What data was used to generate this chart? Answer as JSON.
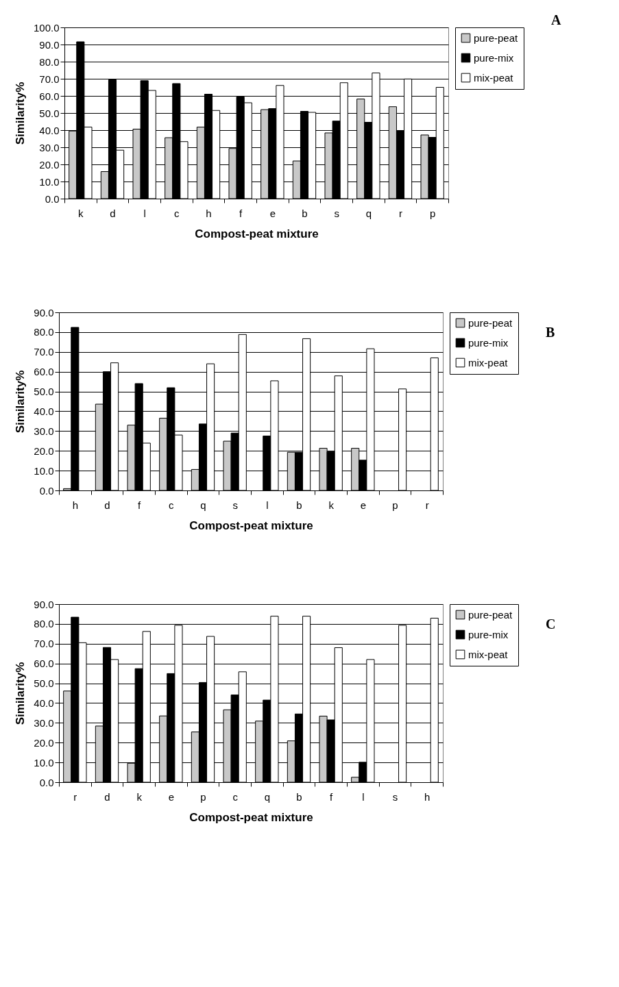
{
  "chart_data": [
    {
      "type": "bar",
      "annotations": [
        "A"
      ],
      "xlabel": "Compost-peat mixture",
      "ylabel": "Similarity%",
      "categories": [
        "k",
        "d",
        "l",
        "c",
        "h",
        "f",
        "e",
        "b",
        "s",
        "q",
        "r",
        "p"
      ],
      "series": [
        {
          "name": "pure-peat",
          "color": "#c8c8c8",
          "values": [
            39.5,
            15.8,
            40.6,
            35.6,
            41.8,
            29.3,
            52.0,
            22.0,
            38.4,
            58.2,
            53.7,
            37.2
          ]
        },
        {
          "name": "pure-mix",
          "color": "#000000",
          "values": [
            91.6,
            69.4,
            68.9,
            67.2,
            61.0,
            59.4,
            52.6,
            51.0,
            45.3,
            44.6,
            39.7,
            35.8
          ]
        },
        {
          "name": "mix-peat",
          "color": "#ffffff",
          "values": [
            41.8,
            28.3,
            63.2,
            33.3,
            51.5,
            56.0,
            66.1,
            50.4,
            67.7,
            73.4,
            69.9,
            65.0
          ]
        }
      ],
      "ylim": [
        0,
        100
      ],
      "yticks": [
        {
          "value": 0,
          "label": "0.0"
        },
        {
          "value": 10,
          "label": "10.0"
        },
        {
          "value": 20,
          "label": "20.0"
        },
        {
          "value": 30,
          "label": "30.0"
        },
        {
          "value": 40,
          "label": "40.0"
        },
        {
          "value": 50,
          "label": "50.0"
        },
        {
          "value": 60,
          "label": "60.0"
        },
        {
          "value": 70,
          "label": "70.0"
        },
        {
          "value": 80,
          "label": "80.0"
        },
        {
          "value": 90,
          "label": "90.0"
        },
        {
          "value": 100,
          "label": "100.0"
        }
      ],
      "grid": "y",
      "legend": "right"
    },
    {
      "type": "bar",
      "annotations": [
        "B"
      ],
      "xlabel": "Compost-peat mixture",
      "ylabel": "Similarity%",
      "categories": [
        "h",
        "d",
        "f",
        "c",
        "q",
        "s",
        "l",
        "b",
        "k",
        "e",
        "p",
        "r"
      ],
      "series": [
        {
          "name": "pure-peat",
          "color": "#c8c8c8",
          "values": [
            0.9,
            43.6,
            33.0,
            36.5,
            10.6,
            24.9,
            null,
            19.3,
            21.3,
            21.3,
            null,
            null
          ]
        },
        {
          "name": "pure-mix",
          "color": "#000000",
          "values": [
            82.4,
            60.0,
            54.0,
            51.9,
            33.6,
            29.0,
            27.5,
            19.3,
            19.5,
            15.3,
            null,
            null
          ]
        },
        {
          "name": "mix-peat",
          "color": "#ffffff",
          "values": [
            null,
            64.5,
            23.9,
            28.0,
            64.0,
            78.8,
            55.4,
            76.7,
            57.9,
            71.6,
            51.3,
            67.0
          ]
        }
      ],
      "ylim": [
        0,
        90
      ],
      "yticks": [
        {
          "value": 0,
          "label": "0.0"
        },
        {
          "value": 10,
          "label": "10.0"
        },
        {
          "value": 20,
          "label": "20.0"
        },
        {
          "value": 30,
          "label": "30.0"
        },
        {
          "value": 40,
          "label": "40.0"
        },
        {
          "value": 50,
          "label": "50.0"
        },
        {
          "value": 60,
          "label": "60.0"
        },
        {
          "value": 70,
          "label": "70.0"
        },
        {
          "value": 80,
          "label": "80.0"
        },
        {
          "value": 90,
          "label": "90.0"
        }
      ],
      "grid": "y",
      "legend": "right"
    },
    {
      "type": "bar",
      "annotations": [
        "C"
      ],
      "xlabel": "Compost-peat mixture",
      "ylabel": "Similarity%",
      "categories": [
        "r",
        "d",
        "k",
        "e",
        "p",
        "c",
        "q",
        "b",
        "f",
        "l",
        "s",
        "h"
      ],
      "series": [
        {
          "name": "pure-peat",
          "color": "#c8c8c8",
          "values": [
            46.1,
            28.4,
            9.6,
            33.5,
            25.4,
            36.6,
            30.9,
            20.9,
            33.4,
            2.5,
            null,
            null
          ]
        },
        {
          "name": "pure-mix",
          "color": "#000000",
          "values": [
            83.4,
            68.1,
            57.4,
            54.9,
            50.4,
            44.1,
            41.5,
            34.5,
            31.5,
            10.1,
            null,
            null
          ]
        },
        {
          "name": "mix-peat",
          "color": "#ffffff",
          "values": [
            70.5,
            62.0,
            76.2,
            79.3,
            73.7,
            55.8,
            83.9,
            83.9,
            68.0,
            62.0,
            79.3,
            82.9
          ]
        }
      ],
      "ylim": [
        0,
        90
      ],
      "yticks": [
        {
          "value": 0,
          "label": "0.0"
        },
        {
          "value": 10,
          "label": "10.0"
        },
        {
          "value": 20,
          "label": "20.0"
        },
        {
          "value": 30,
          "label": "30.0"
        },
        {
          "value": 40,
          "label": "40.0"
        },
        {
          "value": 50,
          "label": "50.0"
        },
        {
          "value": 60,
          "label": "60.0"
        },
        {
          "value": 70,
          "label": "70.0"
        },
        {
          "value": 80,
          "label": "80.0"
        },
        {
          "value": 90,
          "label": "90.0"
        }
      ],
      "grid": "y",
      "legend": "right"
    }
  ]
}
